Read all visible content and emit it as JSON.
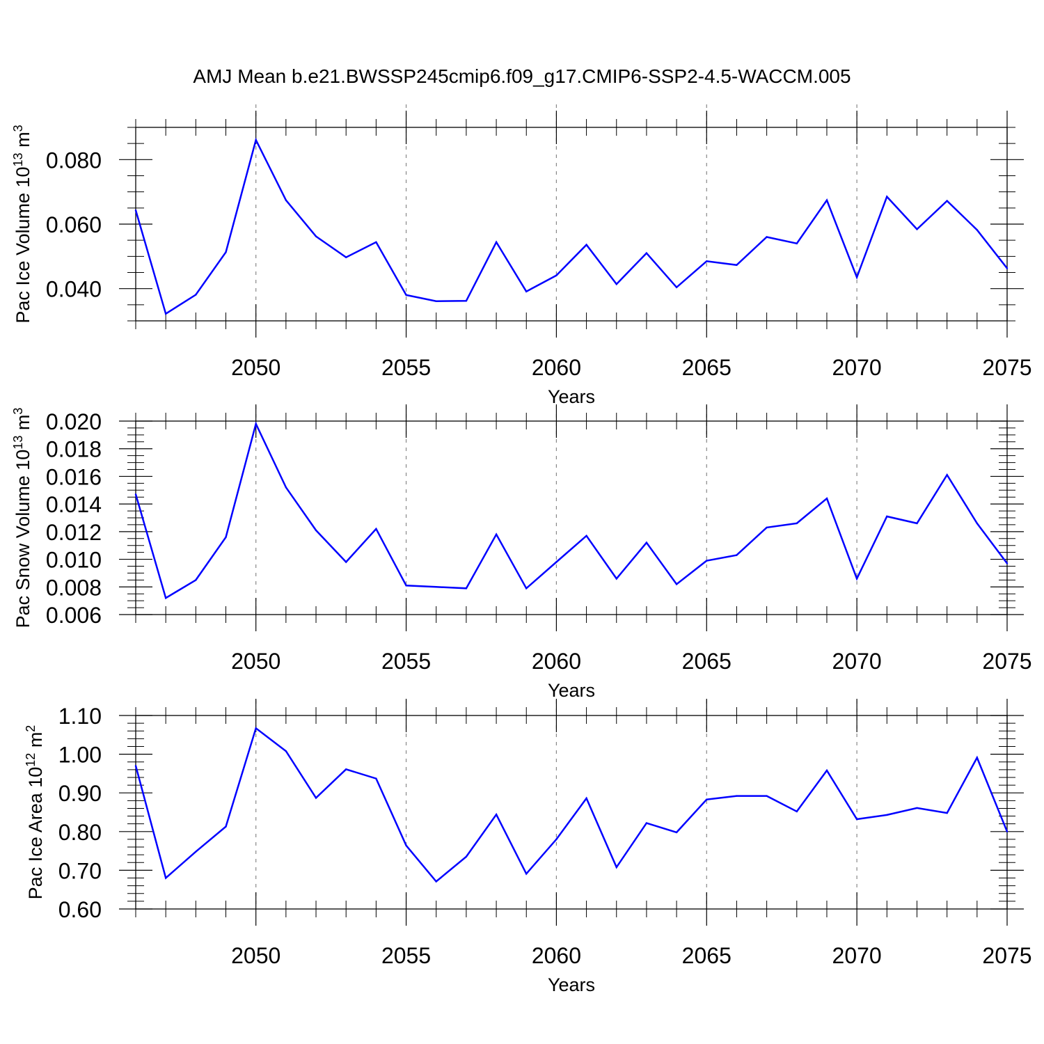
{
  "figure_title": "AMJ Mean b.e21.BWSSP245cmip6.f09_g17.CMIP6-SSP2-4.5-WACCM.005",
  "colors": {
    "line": "#0000ff",
    "axis": "#000000",
    "grid": "#888888"
  },
  "chart_data": [
    {
      "type": "line",
      "title": "AMJ Mean b.e21.BWSSP245cmip6.f09_g17.CMIP6-SSP2-4.5-WACCM.005",
      "xlabel": "Years",
      "ylabel": "Pac Ice Volume 10^13 m^3",
      "ylabel_parts": {
        "main": "Pac Ice Volume 10",
        "exp1": "13",
        "unit": " m",
        "exp2": "3"
      },
      "xlim": [
        2046,
        2075
      ],
      "ylim": [
        0.03,
        0.09
      ],
      "yticks": [
        0.04,
        0.06,
        0.08
      ],
      "ytick_labels": [
        "0.040",
        "0.060",
        "0.080"
      ],
      "yminor_step": 0.005,
      "xticks": [
        2050,
        2055,
        2060,
        2065,
        2070,
        2075
      ],
      "xtick_labels": [
        "2050",
        "2055",
        "2060",
        "2065",
        "2070",
        "2075"
      ],
      "x": [
        2046,
        2047,
        2048,
        2049,
        2050,
        2051,
        2052,
        2053,
        2054,
        2055,
        2056,
        2057,
        2058,
        2059,
        2060,
        2061,
        2062,
        2063,
        2064,
        2065,
        2066,
        2067,
        2068,
        2069,
        2070,
        2071,
        2072,
        2073,
        2074,
        2075
      ],
      "values": [
        0.0643,
        0.0322,
        0.0381,
        0.0513,
        0.0861,
        0.0674,
        0.0562,
        0.0497,
        0.0544,
        0.038,
        0.0361,
        0.0362,
        0.0544,
        0.0391,
        0.0441,
        0.0536,
        0.0414,
        0.051,
        0.0404,
        0.0485,
        0.0473,
        0.056,
        0.054,
        0.0674,
        0.0435,
        0.0685,
        0.0584,
        0.0672,
        0.0582,
        0.0463
      ]
    },
    {
      "type": "line",
      "xlabel": "Years",
      "ylabel": "Pac Snow Volume 10^13 m^3",
      "ylabel_parts": {
        "main": "Pac Snow Volume 10",
        "exp1": "13",
        "unit": " m",
        "exp2": "3"
      },
      "xlim": [
        2046,
        2075
      ],
      "ylim": [
        0.006,
        0.02
      ],
      "yticks": [
        0.006,
        0.008,
        0.01,
        0.012,
        0.014,
        0.016,
        0.018,
        0.02
      ],
      "ytick_labels": [
        "0.006",
        "0.008",
        "0.010",
        "0.012",
        "0.014",
        "0.016",
        "0.018",
        "0.020"
      ],
      "yminor_step": 0.0005,
      "xticks": [
        2050,
        2055,
        2060,
        2065,
        2070,
        2075
      ],
      "xtick_labels": [
        "2050",
        "2055",
        "2060",
        "2065",
        "2070",
        "2075"
      ],
      "x": [
        2046,
        2047,
        2048,
        2049,
        2050,
        2051,
        2052,
        2053,
        2054,
        2055,
        2056,
        2057,
        2058,
        2059,
        2060,
        2061,
        2062,
        2063,
        2064,
        2065,
        2066,
        2067,
        2068,
        2069,
        2070,
        2071,
        2072,
        2073,
        2074,
        2075
      ],
      "values": [
        0.0147,
        0.0072,
        0.0085,
        0.0116,
        0.0198,
        0.0152,
        0.0121,
        0.0098,
        0.0122,
        0.0081,
        0.008,
        0.0079,
        0.0118,
        0.0079,
        0.0098,
        0.0117,
        0.0086,
        0.0112,
        0.0082,
        0.0099,
        0.0103,
        0.0123,
        0.0126,
        0.0144,
        0.0086,
        0.0131,
        0.0126,
        0.0161,
        0.0126,
        0.0097
      ]
    },
    {
      "type": "line",
      "xlabel": "Years",
      "ylabel": "Pac Ice Area 10^12 m^2",
      "ylabel_parts": {
        "main": "Pac Ice Area 10",
        "exp1": "12",
        "unit": " m",
        "exp2": "2"
      },
      "xlim": [
        2046,
        2075
      ],
      "ylim": [
        0.6,
        1.1
      ],
      "yticks": [
        0.6,
        0.7,
        0.8,
        0.9,
        1.0,
        1.1
      ],
      "ytick_labels": [
        "0.60",
        "0.70",
        "0.80",
        "0.90",
        "1.00",
        "1.10"
      ],
      "yminor_step": 0.02,
      "xticks": [
        2050,
        2055,
        2060,
        2065,
        2070,
        2075
      ],
      "xtick_labels": [
        "2050",
        "2055",
        "2060",
        "2065",
        "2070",
        "2075"
      ],
      "x": [
        2046,
        2047,
        2048,
        2049,
        2050,
        2051,
        2052,
        2053,
        2054,
        2055,
        2056,
        2057,
        2058,
        2059,
        2060,
        2061,
        2062,
        2063,
        2064,
        2065,
        2066,
        2067,
        2068,
        2069,
        2070,
        2071,
        2072,
        2073,
        2074,
        2075
      ],
      "values": [
        0.97,
        0.68,
        0.748,
        0.813,
        1.067,
        1.008,
        0.887,
        0.961,
        0.937,
        0.764,
        0.671,
        0.735,
        0.844,
        0.691,
        0.78,
        0.886,
        0.708,
        0.822,
        0.798,
        0.883,
        0.892,
        0.892,
        0.852,
        0.958,
        0.832,
        0.843,
        0.861,
        0.848,
        0.991,
        0.8
      ]
    }
  ]
}
